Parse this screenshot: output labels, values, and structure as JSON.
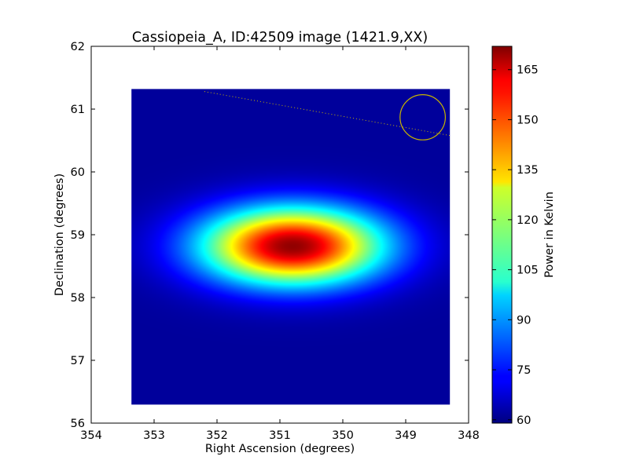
{
  "chart_data": {
    "type": "heatmap",
    "title": "Cassiopeia_A, ID:42509 image (1421.9,XX)",
    "xlabel": "Right Ascension (degrees)",
    "ylabel": "Declination (degrees)",
    "xlim": [
      354,
      348
    ],
    "ylim": [
      56,
      62
    ],
    "x_ticks": [
      354,
      353,
      352,
      351,
      350,
      349,
      348
    ],
    "y_ticks": [
      56,
      57,
      58,
      59,
      60,
      61,
      62
    ],
    "x_tick_labels": [
      "354",
      "353",
      "352",
      "351",
      "350",
      "349",
      "348"
    ],
    "y_tick_labels": [
      "56",
      "57",
      "58",
      "59",
      "60",
      "61",
      "62"
    ],
    "image_extent": {
      "ra": [
        353.36,
        348.3
      ],
      "dec": [
        56.3,
        61.32
      ]
    },
    "colormap": "jet",
    "background_level": 62,
    "sources": [
      {
        "ra_center": 350.8,
        "dec_center": 58.82,
        "peak": 170,
        "sigma_ra": 1.0,
        "sigma_dec": 0.43
      }
    ],
    "colorbar": {
      "label": "Power in Kelvin",
      "range": [
        59,
        172
      ],
      "ticks": [
        60,
        75,
        90,
        105,
        120,
        135,
        150,
        165
      ],
      "tick_labels": [
        "60",
        "75",
        "90",
        "105",
        "120",
        "135",
        "150",
        "165"
      ]
    },
    "overlays": {
      "circle": {
        "ra": 348.73,
        "dec": 60.87,
        "radius_deg": 0.36,
        "color": "#c8b400"
      },
      "dotted_line": {
        "from": {
          "ra": 352.2,
          "dec": 61.28
        },
        "to": {
          "ra": 348.3,
          "dec": 60.58
        },
        "color": "#c8b400"
      }
    },
    "grid": false,
    "legend": false
  }
}
